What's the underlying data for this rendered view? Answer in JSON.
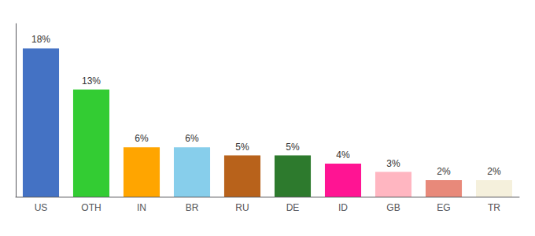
{
  "chart_data": {
    "type": "bar",
    "categories": [
      "US",
      "OTH",
      "IN",
      "BR",
      "RU",
      "DE",
      "ID",
      "GB",
      "EG",
      "TR"
    ],
    "values": [
      18,
      13,
      6,
      6,
      5,
      5,
      4,
      3,
      2,
      2
    ],
    "value_labels": [
      "18%",
      "13%",
      "6%",
      "6%",
      "5%",
      "5%",
      "4%",
      "3%",
      "2%",
      "2%"
    ],
    "colors": [
      "#4472C4",
      "#33CC33",
      "#FFA500",
      "#87CEEB",
      "#B8621B",
      "#2D7A2D",
      "#FF1493",
      "#FFB6C1",
      "#E8897A",
      "#F5F0DC"
    ],
    "ylim": [
      0,
      21
    ],
    "grid": false,
    "data_labels": true,
    "tick_labels": "x"
  }
}
